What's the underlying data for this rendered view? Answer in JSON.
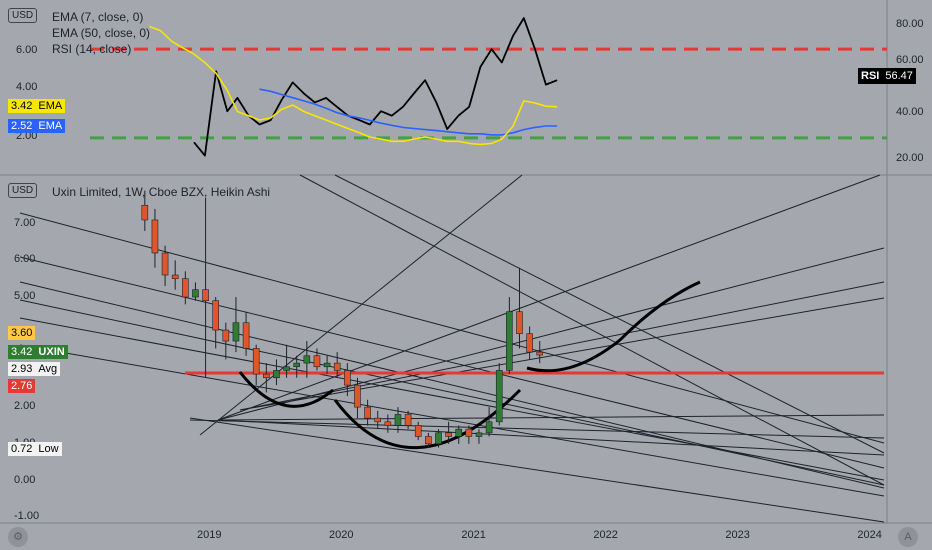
{
  "chart_data": [
    {
      "type": "line",
      "pane": "indicator",
      "legend": [
        "EMA (7, close, 0)",
        "EMA (50, close, 0)",
        "RSI (14, close)"
      ],
      "currency_label": "USD",
      "left_axis_ticks": [
        "6.00",
        "4.00",
        "2.00"
      ],
      "right_axis_ticks": [
        "80.00",
        "60.00",
        "40.00",
        "20.00"
      ],
      "rsi_levels": [
        70,
        30
      ],
      "rsi_level_colors": [
        "#e53935",
        "#43a047"
      ],
      "x_dates": [
        "2018-07",
        "2018-08",
        "2018-09",
        "2018-10",
        "2018-11",
        "2018-12",
        "2019-01",
        "2019-02",
        "2019-03",
        "2019-04",
        "2019-05",
        "2019-06",
        "2019-07",
        "2019-08",
        "2019-09",
        "2019-10",
        "2019-11",
        "2019-12",
        "2020-01",
        "2020-02",
        "2020-03",
        "2020-04",
        "2020-05",
        "2020-06",
        "2020-07",
        "2020-08",
        "2020-09",
        "2020-10",
        "2020-11",
        "2020-12",
        "2021-01",
        "2021-02",
        "2021-03",
        "2021-04",
        "2021-05",
        "2021-06",
        "2021-07",
        "2021-08"
      ],
      "series": [
        {
          "name": "RSI",
          "color": "#000000",
          "values": [
            null,
            null,
            null,
            null,
            28,
            22,
            60,
            42,
            48,
            40,
            36,
            38,
            47,
            55,
            50,
            46,
            48,
            44,
            40,
            38,
            36,
            42,
            40,
            44,
            50,
            56,
            46,
            34,
            40,
            44,
            62,
            70,
            64,
            76,
            84,
            70,
            54,
            56
          ]
        },
        {
          "name": "EMA",
          "color": "#2962ff",
          "values": [
            null,
            null,
            null,
            null,
            null,
            null,
            null,
            null,
            null,
            null,
            4.25,
            4.15,
            4.0,
            3.85,
            3.7,
            3.55,
            3.35,
            3.15,
            3.0,
            2.9,
            2.78,
            2.65,
            2.55,
            2.45,
            2.4,
            2.35,
            2.3,
            2.25,
            2.2,
            2.15,
            2.15,
            2.1,
            2.1,
            2.2,
            2.35,
            2.45,
            2.52,
            2.52
          ]
        },
        {
          "name": "EMA",
          "color": "#f7e600",
          "values": [
            7.2,
            7.0,
            6.5,
            6.2,
            5.9,
            5.5,
            5.0,
            4.2,
            3.2,
            3.0,
            2.8,
            2.9,
            3.3,
            3.5,
            3.2,
            3.0,
            2.8,
            2.6,
            2.4,
            2.2,
            2.0,
            1.9,
            1.8,
            1.8,
            1.9,
            2.0,
            1.9,
            1.8,
            1.8,
            1.7,
            1.65,
            1.7,
            1.9,
            2.5,
            3.7,
            3.6,
            3.45,
            3.42
          ]
        }
      ],
      "tags": {
        "rsi": {
          "name": "RSI",
          "value": "56.47"
        },
        "ema_fast": {
          "value": "3.42",
          "name": "EMA",
          "color": "#f7e600"
        },
        "ema_slow": {
          "value": "2.52",
          "name": "EMA",
          "color": "#2962ff"
        }
      }
    },
    {
      "type": "candlestick",
      "pane": "price",
      "title": "Uxin Limited, 1W, Cboe BZX, Heikin Ashi",
      "currency_label": "USD",
      "y_axis_ticks": [
        "7.00",
        "6.00",
        "5.00",
        "4.00",
        "3.00",
        "2.00",
        "1.00",
        "0.00",
        "-1.00"
      ],
      "ylim": [
        -1.3,
        7.7
      ],
      "x_axis_ticks": [
        "2019",
        "2020",
        "2021",
        "2022",
        "2023",
        "2024"
      ],
      "ohlc": [
        [
          "2018-07-02",
          7.5,
          7.9,
          6.8,
          7.1
        ],
        [
          "2018-07-30",
          7.1,
          7.4,
          5.8,
          6.2
        ],
        [
          "2018-08-27",
          6.2,
          6.4,
          5.3,
          5.6
        ],
        [
          "2018-09-24",
          5.6,
          6.0,
          5.2,
          5.5
        ],
        [
          "2018-10-22",
          5.5,
          5.7,
          4.8,
          5.0
        ],
        [
          "2018-11-19",
          5.0,
          5.4,
          4.9,
          5.2
        ],
        [
          "2018-12-17",
          5.2,
          7.7,
          2.8,
          4.9
        ],
        [
          "2019-01-14",
          4.9,
          5.0,
          3.6,
          4.1
        ],
        [
          "2019-02-11",
          4.1,
          4.3,
          3.3,
          3.8
        ],
        [
          "2019-03-11",
          3.8,
          5.0,
          3.5,
          4.3
        ],
        [
          "2019-04-08",
          4.3,
          4.6,
          3.4,
          3.6
        ],
        [
          "2019-05-06",
          3.6,
          3.7,
          2.6,
          2.9
        ],
        [
          "2019-06-03",
          2.9,
          3.2,
          2.4,
          2.8
        ],
        [
          "2019-07-01",
          2.8,
          3.3,
          2.6,
          3.0
        ],
        [
          "2019-07-29",
          3.0,
          3.7,
          2.8,
          3.1
        ],
        [
          "2019-08-26",
          3.1,
          3.4,
          2.8,
          3.2
        ],
        [
          "2019-09-23",
          3.2,
          3.8,
          2.8,
          3.4
        ],
        [
          "2019-10-21",
          3.4,
          3.6,
          3.0,
          3.1
        ],
        [
          "2019-11-18",
          3.1,
          3.4,
          2.9,
          3.2
        ],
        [
          "2019-12-16",
          3.2,
          3.5,
          2.8,
          3.0
        ],
        [
          "2020-01-13",
          3.0,
          3.2,
          2.3,
          2.6
        ],
        [
          "2020-02-10",
          2.6,
          2.8,
          1.7,
          2.0
        ],
        [
          "2020-03-09",
          2.0,
          2.2,
          1.5,
          1.7
        ],
        [
          "2020-04-06",
          1.7,
          1.9,
          1.4,
          1.6
        ],
        [
          "2020-05-04",
          1.6,
          1.8,
          1.3,
          1.5
        ],
        [
          "2020-06-01",
          1.5,
          2.0,
          1.3,
          1.8
        ],
        [
          "2020-06-29",
          1.8,
          1.9,
          1.4,
          1.5
        ],
        [
          "2020-07-27",
          1.5,
          1.6,
          1.1,
          1.2
        ],
        [
          "2020-08-24",
          1.2,
          1.3,
          0.9,
          1.0
        ],
        [
          "2020-09-21",
          1.0,
          1.4,
          0.9,
          1.3
        ],
        [
          "2020-10-19",
          1.3,
          1.6,
          1.0,
          1.2
        ],
        [
          "2020-11-16",
          1.2,
          1.5,
          1.0,
          1.4
        ],
        [
          "2020-12-14",
          1.4,
          1.5,
          1.0,
          1.2
        ],
        [
          "2021-01-11",
          1.2,
          1.4,
          1.0,
          1.3
        ],
        [
          "2021-02-08",
          1.3,
          2.0,
          1.2,
          1.6
        ],
        [
          "2021-03-08",
          1.6,
          3.2,
          1.5,
          3.0
        ],
        [
          "2021-04-05",
          3.0,
          5.0,
          2.9,
          4.6
        ],
        [
          "2021-05-03",
          4.6,
          5.8,
          3.6,
          4.0
        ],
        [
          "2021-05-31",
          4.0,
          4.2,
          3.3,
          3.5
        ],
        [
          "2021-06-28",
          3.5,
          3.8,
          3.2,
          3.42
        ]
      ],
      "price_tags": {
        "upper": {
          "value": "3.60",
          "color": "#ffc947"
        },
        "last": {
          "value": "3.42",
          "name": "UXIN",
          "color": "#2e7d32"
        },
        "avg": {
          "value": "2.93",
          "name": "Avg",
          "color": "#f2f2f2"
        },
        "lower": {
          "value": "2.76",
          "color": "#e53935"
        },
        "low": {
          "value": "0.72",
          "name": "Low",
          "color": "#f2f2f2"
        }
      },
      "support_level": 2.93,
      "support_color": "#e53935"
    }
  ]
}
